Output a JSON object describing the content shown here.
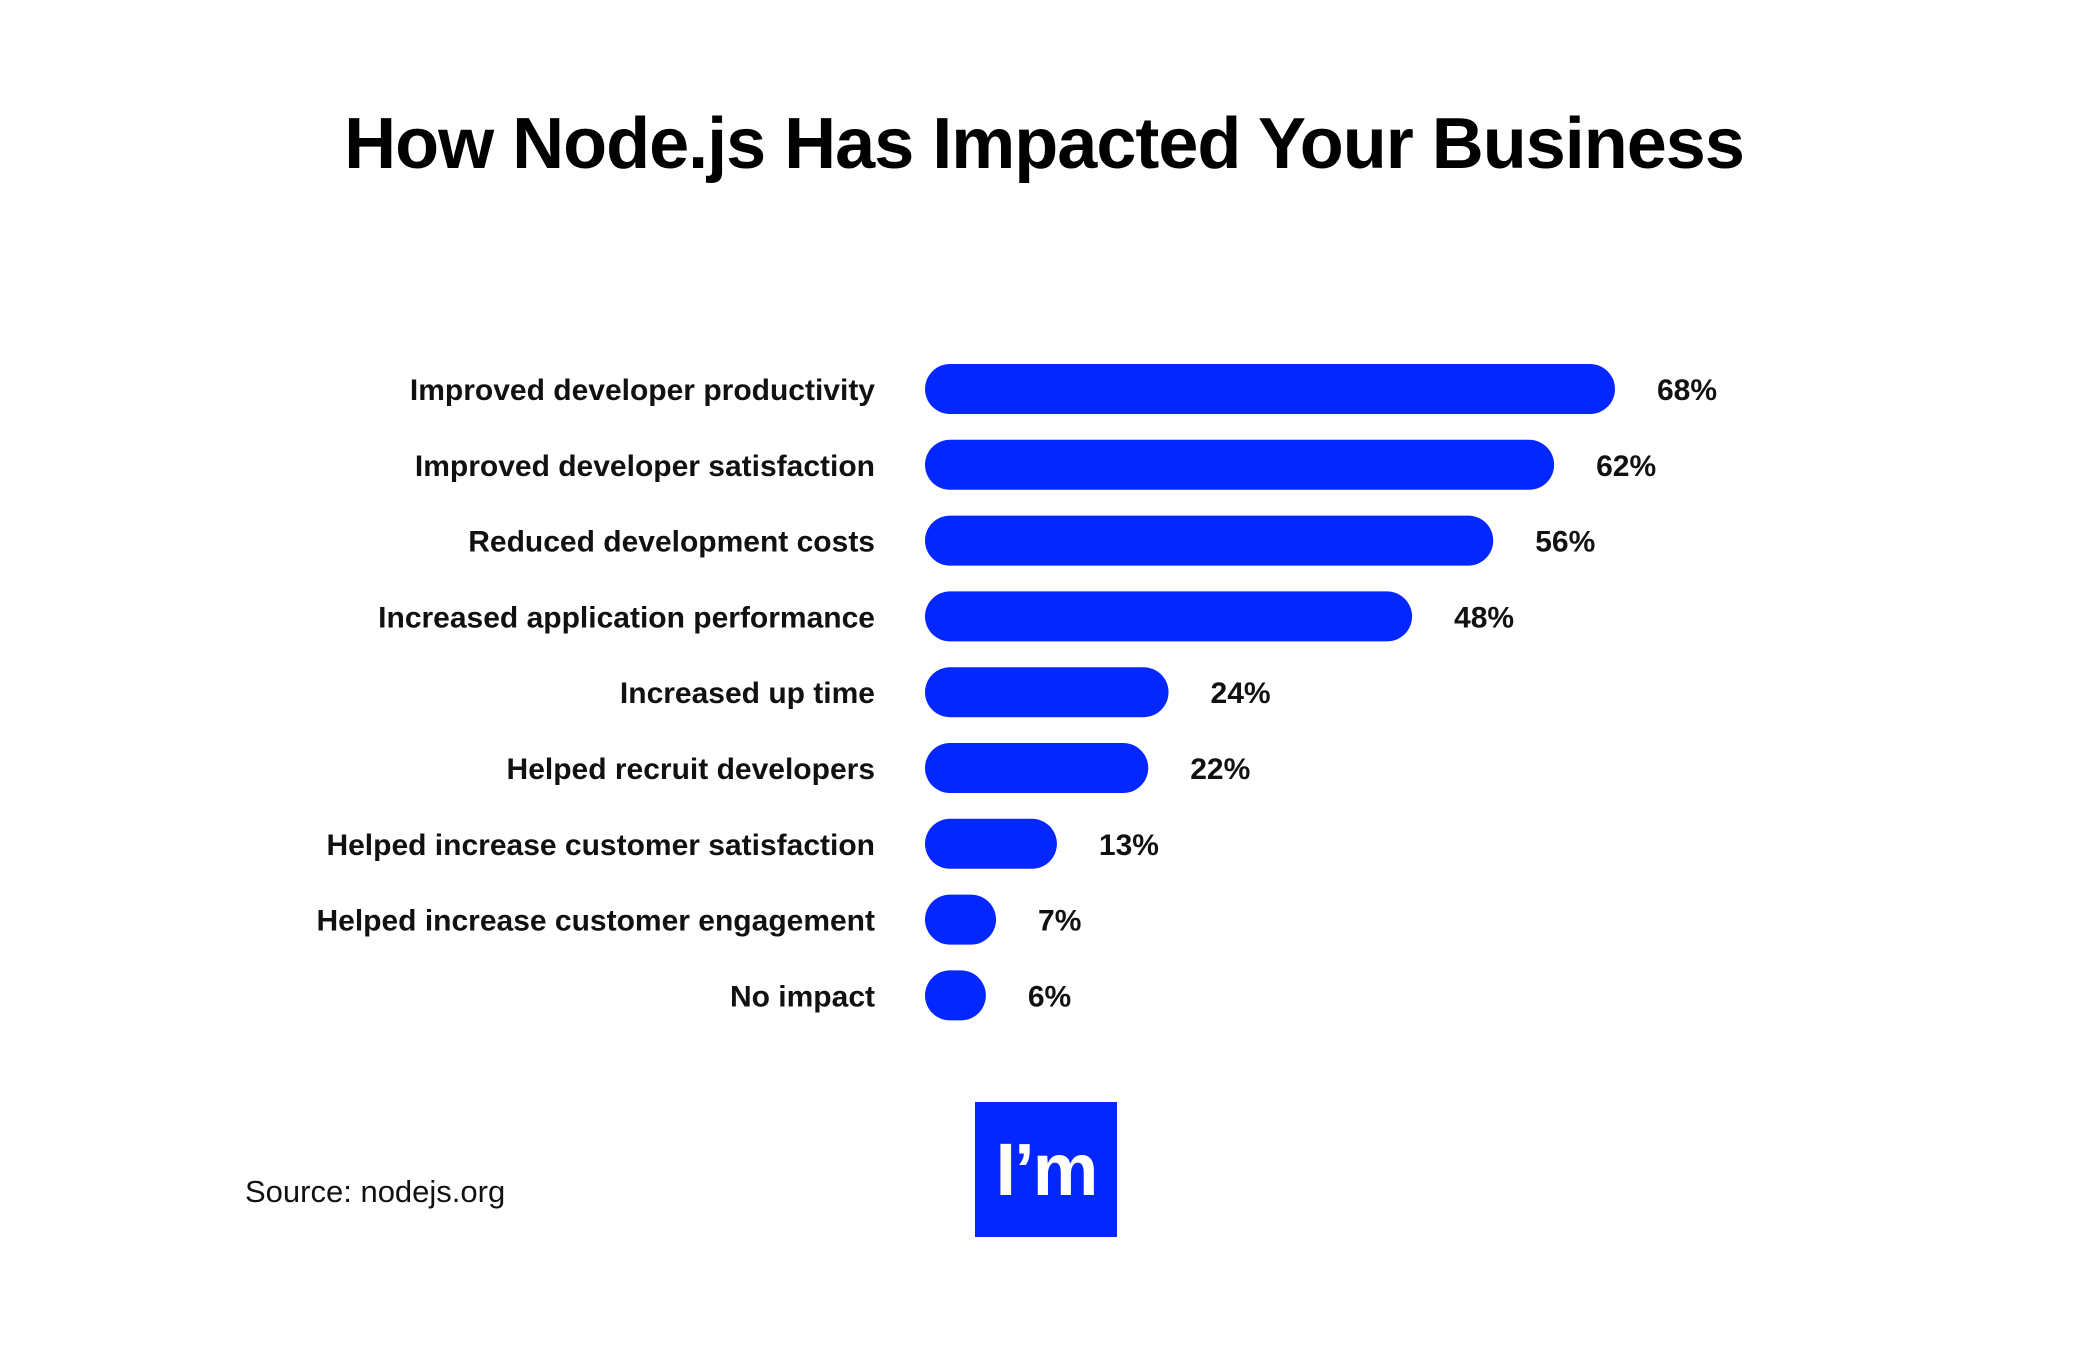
{
  "chart_data": {
    "type": "bar",
    "orientation": "horizontal",
    "title": "How Node.js Has Impacted Your Business",
    "categories": [
      "Improved developer productivity",
      "Improved developer satisfaction",
      "Reduced development costs",
      "Increased application performance",
      "Increased up time",
      "Helped recruit developers",
      "Helped increase customer satisfaction",
      "Helped increase customer engagement",
      "No impact"
    ],
    "values": [
      68,
      62,
      56,
      48,
      24,
      22,
      13,
      7,
      6
    ],
    "value_labels": [
      "68%",
      "62%",
      "56%",
      "48%",
      "24%",
      "22%",
      "13%",
      "7%",
      "6%"
    ],
    "xlim": [
      0,
      100
    ],
    "grid": false,
    "bar_color": "#0427FF"
  },
  "footer": {
    "source": "Source: nodejs.org",
    "logo_text": "I’m",
    "logo_color": "#0427FF"
  }
}
